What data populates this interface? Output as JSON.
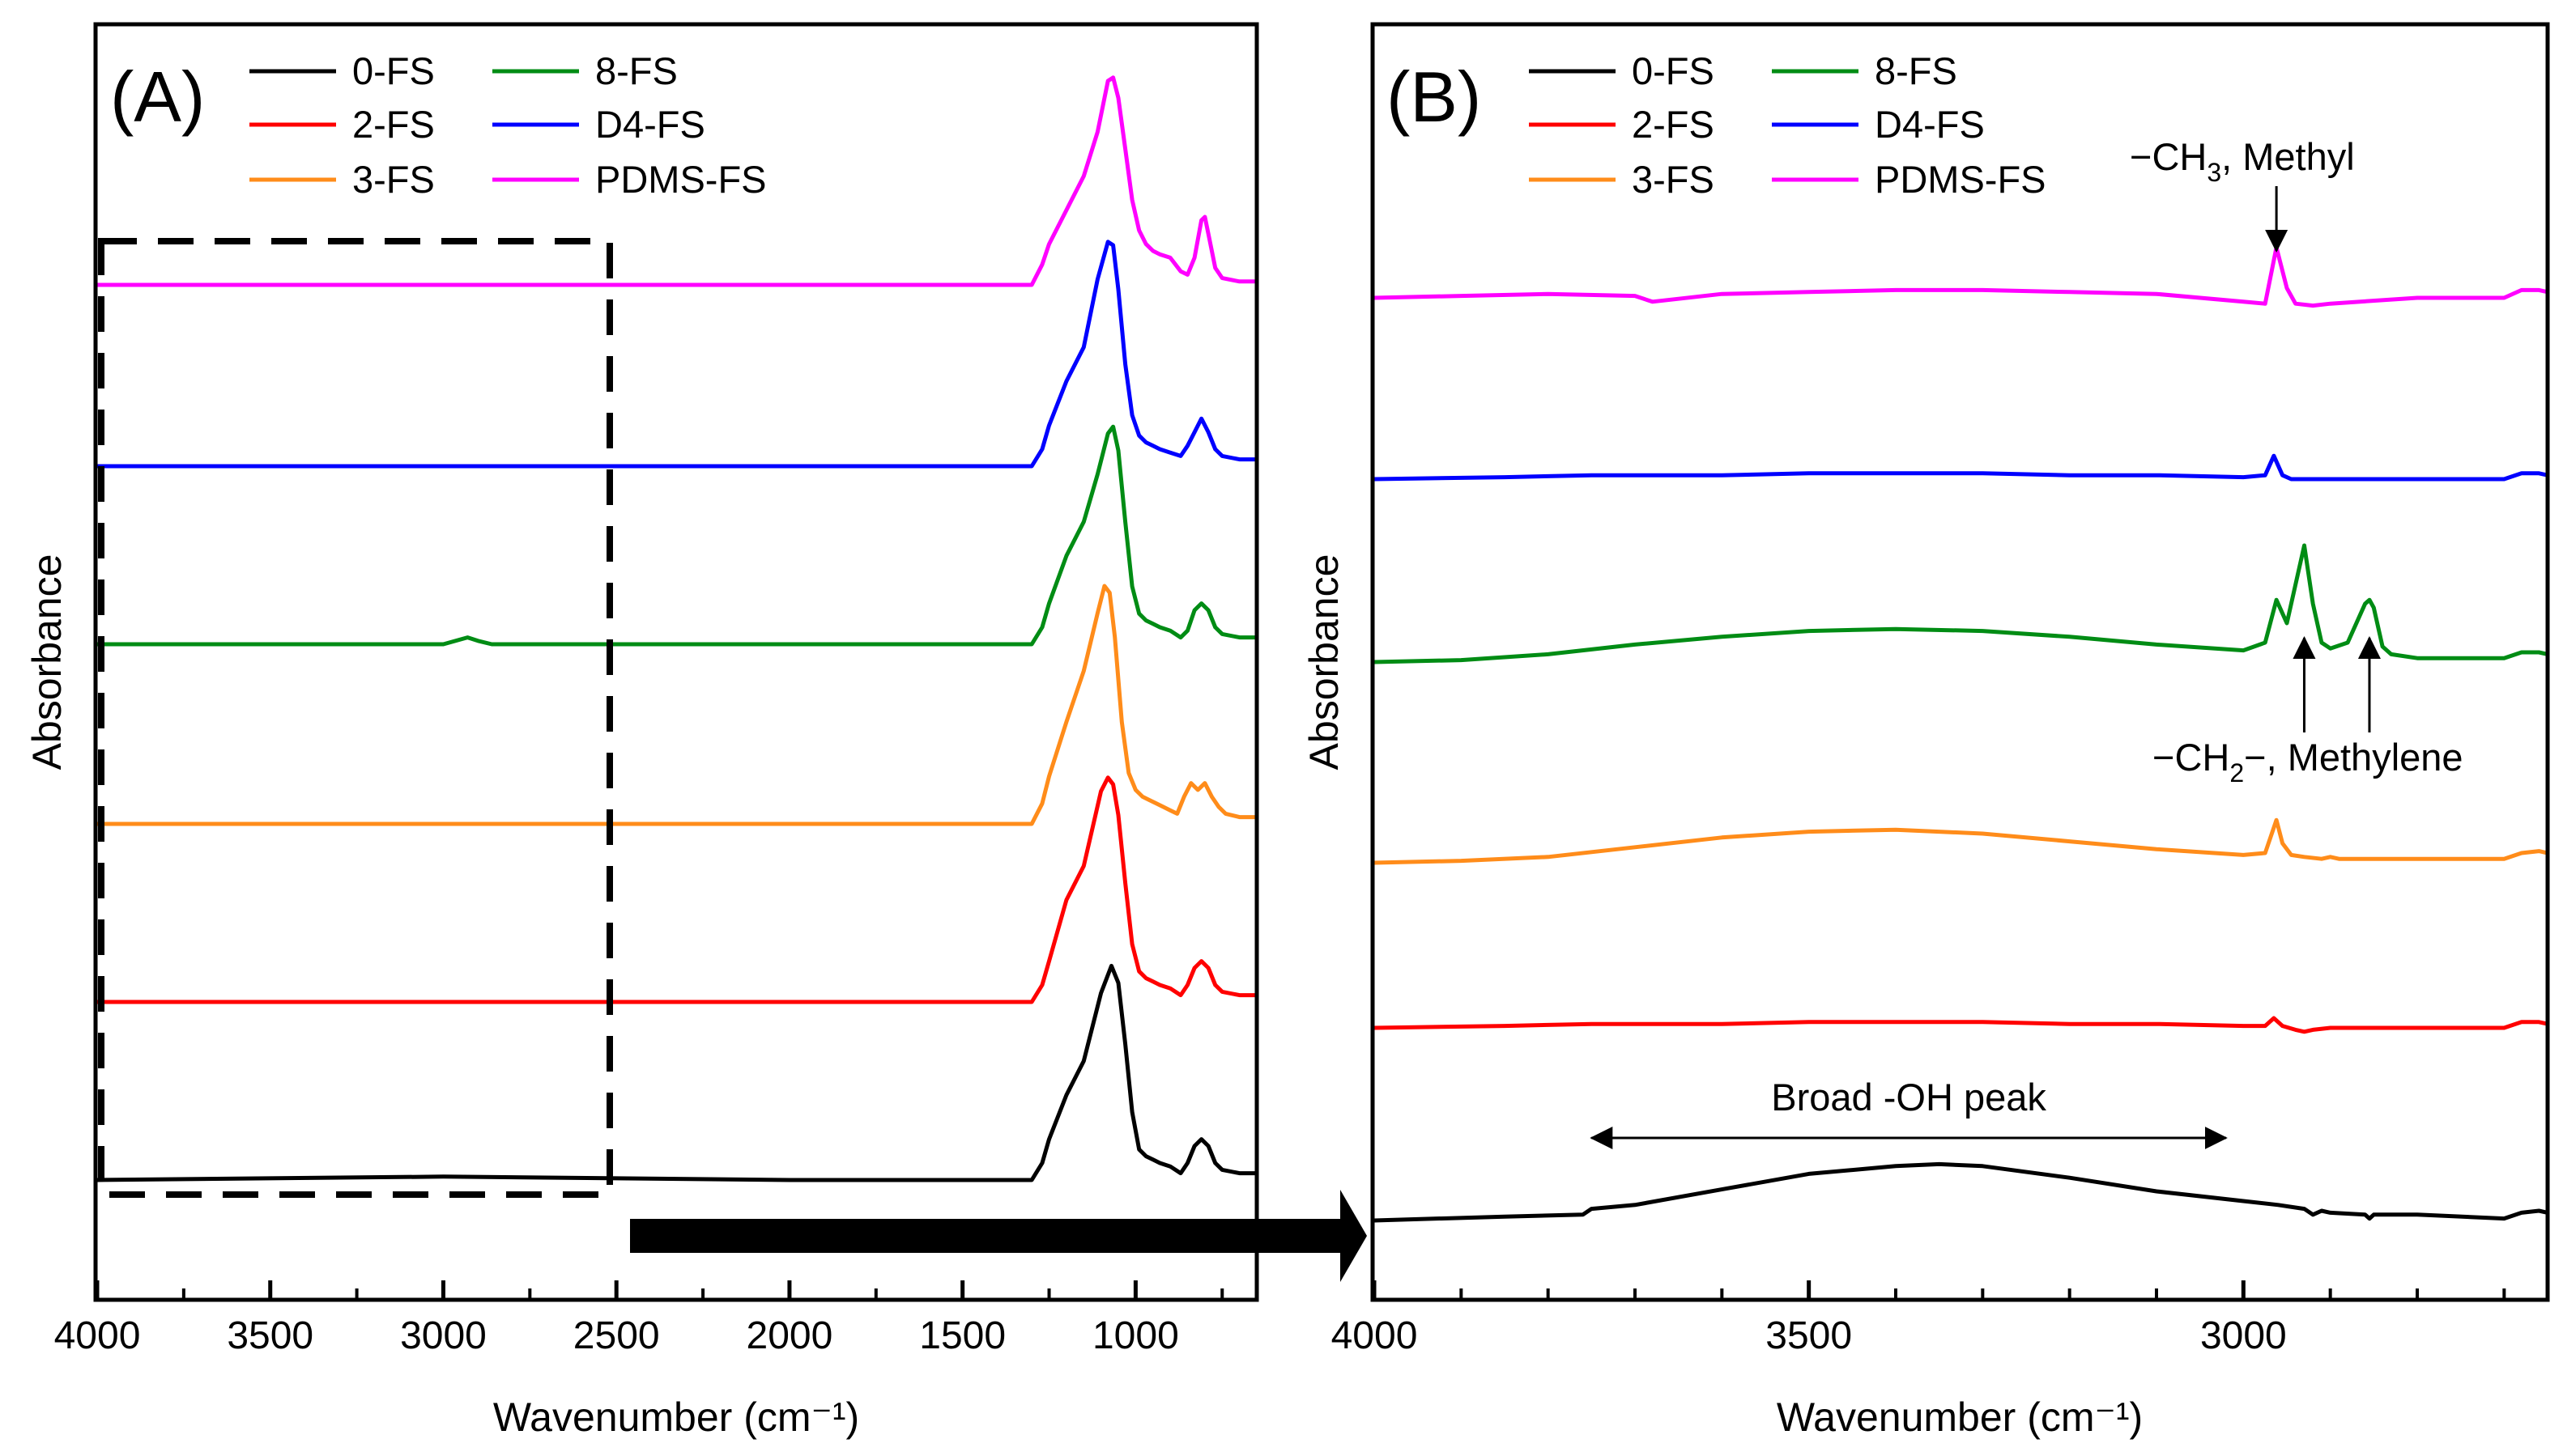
{
  "chart_data": [
    {
      "panel": "A",
      "panel_label": "(A)",
      "type": "line",
      "xlabel": "Wavenumber (cm⁻¹)",
      "ylabel": "Absorbance",
      "xlim": [
        4000,
        650
      ],
      "xreversed": true,
      "grid": false,
      "yticks_shown": false,
      "xticks": [
        4000,
        3500,
        3000,
        2500,
        2000,
        1500,
        1000
      ],
      "xtick_labels": [
        "4000",
        "3500",
        "3000",
        "2500",
        "2000",
        "1500",
        "1000"
      ],
      "legend": {
        "position": "top",
        "columns": 2,
        "entries": [
          "0-FS",
          "2-FS",
          "3-FS",
          "8-FS",
          "D4-FS",
          "PDMS-FS"
        ]
      },
      "highlight_box": {
        "x_from": 4000,
        "x_to": 2500,
        "style": "dashed"
      },
      "series": [
        {
          "name": "0-FS",
          "color": "#000000",
          "offset": 0.0,
          "x": [
            4000,
            3000,
            2000,
            1300,
            1270,
            1250,
            1200,
            1150,
            1100,
            1070,
            1050,
            1030,
            1010,
            990,
            970,
            950,
            930,
            900,
            870,
            850,
            830,
            810,
            790,
            770,
            750,
            700,
            650
          ],
          "values": [
            0.0,
            0.01,
            0.0,
            0.0,
            0.05,
            0.12,
            0.25,
            0.35,
            0.55,
            0.63,
            0.58,
            0.4,
            0.2,
            0.09,
            0.07,
            0.06,
            0.05,
            0.04,
            0.02,
            0.05,
            0.1,
            0.12,
            0.1,
            0.05,
            0.03,
            0.02,
            0.02
          ]
        },
        {
          "name": "2-FS",
          "color": "#ff0000",
          "offset": 1.0,
          "x": [
            4000,
            3000,
            2000,
            1300,
            1270,
            1250,
            1200,
            1150,
            1100,
            1080,
            1065,
            1050,
            1030,
            1010,
            990,
            970,
            950,
            930,
            900,
            870,
            850,
            830,
            810,
            790,
            770,
            750,
            700,
            650
          ],
          "values": [
            0.0,
            0.0,
            0.0,
            0.0,
            0.05,
            0.12,
            0.3,
            0.4,
            0.62,
            0.66,
            0.64,
            0.55,
            0.35,
            0.17,
            0.09,
            0.07,
            0.06,
            0.05,
            0.04,
            0.02,
            0.05,
            0.1,
            0.12,
            0.1,
            0.05,
            0.03,
            0.02,
            0.02
          ]
        },
        {
          "name": "3-FS",
          "color": "#ff8c1a",
          "offset": 2.0,
          "x": [
            4000,
            3000,
            2000,
            1300,
            1270,
            1250,
            1200,
            1150,
            1110,
            1090,
            1075,
            1060,
            1040,
            1020,
            1000,
            980,
            960,
            940,
            920,
            900,
            880,
            860,
            840,
            820,
            800,
            780,
            760,
            740,
            700,
            650
          ],
          "values": [
            0.0,
            0.0,
            0.0,
            0.0,
            0.06,
            0.14,
            0.3,
            0.45,
            0.62,
            0.7,
            0.68,
            0.55,
            0.3,
            0.15,
            0.1,
            0.08,
            0.07,
            0.06,
            0.05,
            0.04,
            0.03,
            0.08,
            0.12,
            0.1,
            0.12,
            0.08,
            0.05,
            0.03,
            0.02,
            0.02
          ]
        },
        {
          "name": "8-FS",
          "color": "#008c14",
          "offset": 3.0,
          "x": [
            4000,
            3000,
            2930,
            2900,
            2860,
            2000,
            1300,
            1270,
            1250,
            1200,
            1150,
            1110,
            1080,
            1065,
            1050,
            1030,
            1010,
            990,
            970,
            950,
            930,
            900,
            870,
            850,
            830,
            810,
            790,
            770,
            750,
            700,
            650
          ],
          "values": [
            0.0,
            0.0,
            0.02,
            0.01,
            0.0,
            0.0,
            0.0,
            0.05,
            0.12,
            0.26,
            0.36,
            0.5,
            0.62,
            0.64,
            0.57,
            0.36,
            0.17,
            0.09,
            0.07,
            0.06,
            0.05,
            0.04,
            0.02,
            0.04,
            0.1,
            0.12,
            0.1,
            0.05,
            0.03,
            0.02,
            0.02
          ]
        },
        {
          "name": "D4-FS",
          "color": "#0000ff",
          "offset": 4.0,
          "x": [
            4000,
            3000,
            2000,
            1300,
            1270,
            1250,
            1200,
            1150,
            1110,
            1080,
            1065,
            1050,
            1030,
            1010,
            990,
            970,
            950,
            930,
            900,
            870,
            850,
            830,
            810,
            790,
            770,
            750,
            700,
            650
          ],
          "values": [
            0.0,
            0.0,
            0.0,
            0.0,
            0.05,
            0.12,
            0.25,
            0.35,
            0.55,
            0.66,
            0.65,
            0.52,
            0.3,
            0.15,
            0.09,
            0.07,
            0.06,
            0.05,
            0.04,
            0.03,
            0.06,
            0.1,
            0.14,
            0.1,
            0.05,
            0.03,
            0.02,
            0.02
          ]
        },
        {
          "name": "PDMS-FS",
          "color": "#ff00ff",
          "offset": 5.0,
          "x": [
            4000,
            3000,
            2000,
            1300,
            1270,
            1250,
            1200,
            1150,
            1110,
            1080,
            1065,
            1050,
            1030,
            1010,
            990,
            970,
            950,
            930,
            900,
            870,
            850,
            830,
            810,
            800,
            790,
            770,
            750,
            700,
            650
          ],
          "values": [
            0.0,
            0.0,
            0.0,
            0.0,
            0.06,
            0.12,
            0.22,
            0.32,
            0.45,
            0.6,
            0.61,
            0.55,
            0.4,
            0.25,
            0.16,
            0.12,
            0.1,
            0.09,
            0.08,
            0.04,
            0.03,
            0.08,
            0.19,
            0.2,
            0.15,
            0.05,
            0.02,
            0.01,
            0.01
          ]
        }
      ]
    },
    {
      "panel": "B",
      "panel_label": "(B)",
      "type": "line",
      "xlabel": "Wavenumber (cm⁻¹)",
      "ylabel": "Absorbance",
      "xlim": [
        4000,
        2650
      ],
      "xreversed": true,
      "grid": false,
      "yticks_shown": false,
      "xticks": [
        4000,
        3500,
        3000
      ],
      "xtick_labels": [
        "4000",
        "3500",
        "3000"
      ],
      "legend": {
        "position": "top",
        "columns": 2,
        "entries": [
          "0-FS",
          "2-FS",
          "3-FS",
          "8-FS",
          "D4-FS",
          "PDMS-FS"
        ]
      },
      "series": [
        {
          "name": "0-FS",
          "color": "#000000",
          "offset": 0.0,
          "x": [
            4000,
            3850,
            3760,
            3750,
            3700,
            3600,
            3500,
            3400,
            3350,
            3300,
            3200,
            3100,
            3000,
            2960,
            2930,
            2920,
            2910,
            2900,
            2860,
            2855,
            2850,
            2800,
            2700,
            2680,
            2660,
            2650
          ],
          "values": [
            0.0,
            0.02,
            0.03,
            0.06,
            0.08,
            0.16,
            0.24,
            0.28,
            0.29,
            0.28,
            0.22,
            0.15,
            0.1,
            0.08,
            0.06,
            0.03,
            0.05,
            0.04,
            0.03,
            0.01,
            0.03,
            0.03,
            0.01,
            0.04,
            0.05,
            0.04
          ]
        },
        {
          "name": "2-FS",
          "color": "#ff0000",
          "offset": 1.0,
          "x": [
            4000,
            3850,
            3750,
            3600,
            3500,
            3400,
            3300,
            3200,
            3100,
            3000,
            2975,
            2965,
            2955,
            2940,
            2930,
            2920,
            2900,
            2800,
            2700,
            2680,
            2660,
            2650
          ],
          "values": [
            0.0,
            0.01,
            0.02,
            0.02,
            0.03,
            0.03,
            0.03,
            0.02,
            0.02,
            0.01,
            0.01,
            0.05,
            0.01,
            -0.01,
            -0.02,
            -0.01,
            0.0,
            0.0,
            0.0,
            0.03,
            0.03,
            0.02
          ]
        },
        {
          "name": "3-FS",
          "color": "#ff8c1a",
          "offset": 2.0,
          "x": [
            4000,
            3900,
            3800,
            3700,
            3600,
            3500,
            3400,
            3300,
            3200,
            3100,
            3000,
            2975,
            2962,
            2955,
            2945,
            2930,
            2910,
            2900,
            2890,
            2860,
            2800,
            2700,
            2680,
            2660,
            2650
          ],
          "values": [
            0.0,
            0.01,
            0.03,
            0.08,
            0.13,
            0.16,
            0.17,
            0.15,
            0.11,
            0.07,
            0.04,
            0.05,
            0.22,
            0.1,
            0.04,
            0.03,
            0.02,
            0.03,
            0.02,
            0.02,
            0.02,
            0.02,
            0.05,
            0.06,
            0.05
          ]
        },
        {
          "name": "8-FS",
          "color": "#008c14",
          "offset": 3.0,
          "x": [
            4000,
            3900,
            3800,
            3700,
            3600,
            3500,
            3400,
            3300,
            3200,
            3100,
            3000,
            2975,
            2962,
            2950,
            2930,
            2920,
            2910,
            2900,
            2880,
            2860,
            2855,
            2850,
            2840,
            2830,
            2800,
            2700,
            2680,
            2660,
            2650
          ],
          "values": [
            0.0,
            0.01,
            0.04,
            0.09,
            0.13,
            0.16,
            0.17,
            0.16,
            0.13,
            0.09,
            0.06,
            0.1,
            0.32,
            0.2,
            0.6,
            0.3,
            0.1,
            0.07,
            0.1,
            0.3,
            0.32,
            0.28,
            0.08,
            0.04,
            0.02,
            0.02,
            0.05,
            0.05,
            0.04
          ]
        },
        {
          "name": "D4-FS",
          "color": "#0000ff",
          "offset": 4.0,
          "x": [
            4000,
            3850,
            3750,
            3600,
            3500,
            3400,
            3300,
            3200,
            3100,
            3000,
            2975,
            2965,
            2955,
            2945,
            2920,
            2900,
            2800,
            2700,
            2680,
            2660,
            2650
          ],
          "values": [
            0.0,
            0.01,
            0.02,
            0.02,
            0.03,
            0.03,
            0.03,
            0.02,
            0.02,
            0.01,
            0.02,
            0.12,
            0.02,
            0.0,
            0.0,
            0.0,
            0.0,
            0.0,
            0.03,
            0.03,
            0.02
          ]
        },
        {
          "name": "PDMS-FS",
          "color": "#ff00ff",
          "offset": 5.0,
          "x": [
            4000,
            3900,
            3800,
            3700,
            3680,
            3600,
            3500,
            3400,
            3300,
            3200,
            3100,
            3000,
            2975,
            2962,
            2950,
            2940,
            2920,
            2900,
            2800,
            2700,
            2680,
            2660,
            2650
          ],
          "values": [
            0.0,
            0.01,
            0.02,
            0.01,
            -0.02,
            0.02,
            0.03,
            0.04,
            0.04,
            0.03,
            0.02,
            -0.02,
            -0.03,
            0.26,
            0.05,
            -0.03,
            -0.04,
            -0.03,
            0.0,
            0.0,
            0.04,
            0.04,
            0.03
          ]
        }
      ],
      "annotations": [
        {
          "text_main": "−CH",
          "text_sub": "3",
          "text_rest": ", Methyl",
          "arrow_x": 2962,
          "arrow_target_series": "PDMS-FS",
          "arrow_direction": "down"
        },
        {
          "text_main": "−CH",
          "text_sub": "2",
          "text_rest": "−, Methylene",
          "arrow_x": [
            2930,
            2855
          ],
          "arrow_target_series": "8-FS",
          "arrow_direction": "up"
        },
        {
          "text": "Broad -OH peak",
          "from_x": 3750,
          "to_x": 3020,
          "type": "double-arrow"
        }
      ]
    }
  ]
}
